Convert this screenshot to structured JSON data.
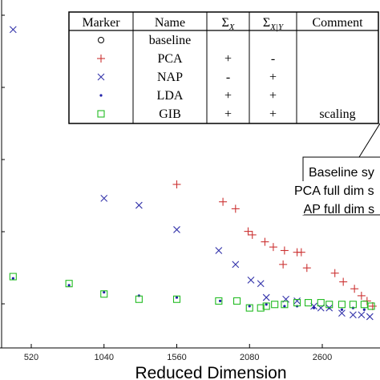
{
  "chart_data": {
    "type": "scatter",
    "xlabel": "Reduced Dimension",
    "ylabel": "",
    "x_ticks": [
      520,
      1040,
      1560,
      2080,
      2600
    ],
    "xlim": [
      360,
      2960
    ],
    "ylim": [
      0,
      100
    ],
    "grid": false,
    "legend_placement": "top-center",
    "colors": {
      "baseline": "#000000",
      "PCA": "#cc3333",
      "NAP": "#3333aa",
      "LDA": "#2222aa",
      "GIB": "#22bb22"
    },
    "series": [
      {
        "name": "baseline",
        "marker": "o",
        "points": []
      },
      {
        "name": "PCA",
        "marker": "+",
        "points": [
          [
            1560,
            47
          ],
          [
            1890,
            42
          ],
          [
            1980,
            40
          ],
          [
            2070,
            33.5
          ],
          [
            2100,
            32.5
          ],
          [
            2190,
            30.5
          ],
          [
            2250,
            29
          ],
          [
            2330,
            28
          ],
          [
            2420,
            27.5
          ],
          [
            2450,
            27.5
          ],
          [
            2320,
            24
          ],
          [
            2490,
            23
          ],
          [
            2690,
            21.5
          ],
          [
            2750,
            19
          ],
          [
            2830,
            17
          ],
          [
            2880,
            15
          ],
          [
            2920,
            13.5
          ],
          [
            2960,
            12
          ]
        ]
      },
      {
        "name": "NAP",
        "marker": "x",
        "points": [
          [
            390,
            91.5
          ],
          [
            1040,
            43
          ],
          [
            1290,
            41
          ],
          [
            1560,
            34
          ],
          [
            1860,
            28
          ],
          [
            1980,
            24
          ],
          [
            2090,
            19.5
          ],
          [
            2160,
            18.5
          ],
          [
            2200,
            14.5
          ],
          [
            2340,
            14
          ],
          [
            2420,
            13.5
          ],
          [
            2540,
            12
          ],
          [
            2590,
            11.5
          ],
          [
            2650,
            11.5
          ],
          [
            2740,
            10
          ],
          [
            2820,
            9.5
          ],
          [
            2880,
            9.5
          ],
          [
            2940,
            9
          ]
        ]
      },
      {
        "name": "LDA",
        "marker": ".",
        "points": [
          [
            390,
            20
          ],
          [
            790,
            18
          ],
          [
            1040,
            16
          ],
          [
            1290,
            15
          ],
          [
            1560,
            14.5
          ],
          [
            1870,
            13.5
          ],
          [
            2080,
            12
          ],
          [
            2200,
            12.5
          ],
          [
            2330,
            12
          ],
          [
            2420,
            12
          ],
          [
            2540,
            11.5
          ],
          [
            2650,
            11.5
          ],
          [
            2740,
            11
          ],
          [
            2820,
            11.5
          ],
          [
            2900,
            11
          ]
        ]
      },
      {
        "name": "GIB",
        "marker": "square",
        "points": [
          [
            390,
            20.5
          ],
          [
            790,
            18.5
          ],
          [
            1040,
            15.5
          ],
          [
            1290,
            14
          ],
          [
            1560,
            14
          ],
          [
            1860,
            13.5
          ],
          [
            1990,
            13.5
          ],
          [
            2080,
            11.5
          ],
          [
            2160,
            11.5
          ],
          [
            2200,
            12
          ],
          [
            2260,
            12.5
          ],
          [
            2330,
            12.5
          ],
          [
            2420,
            13
          ],
          [
            2500,
            13
          ],
          [
            2590,
            13
          ],
          [
            2650,
            12.5
          ],
          [
            2740,
            12.5
          ],
          [
            2820,
            12.5
          ],
          [
            2900,
            12.5
          ],
          [
            2950,
            12
          ]
        ]
      }
    ],
    "legend_table": {
      "headers": [
        "Marker",
        "Name",
        "Σ",
        "Σ",
        "Comment"
      ],
      "header_subscripts": [
        "",
        "",
        "X",
        "X|Y",
        ""
      ],
      "rows": [
        {
          "marker": "o",
          "name": "baseline",
          "sx": "",
          "sxy": "",
          "comment": ""
        },
        {
          "marker": "+",
          "name": "PCA",
          "sx": "+",
          "sxy": "-",
          "comment": ""
        },
        {
          "marker": "x",
          "name": "NAP",
          "sx": "-",
          "sxy": "+",
          "comment": ""
        },
        {
          "marker": ".",
          "name": "LDA",
          "sx": "+",
          "sxy": "+",
          "comment": ""
        },
        {
          "marker": "square",
          "name": "GIB",
          "sx": "+",
          "sxy": "+",
          "comment": "scaling"
        }
      ]
    },
    "annotations": [
      "Baseline sy",
      "PCA full dim s",
      "NAP full dim s"
    ]
  }
}
